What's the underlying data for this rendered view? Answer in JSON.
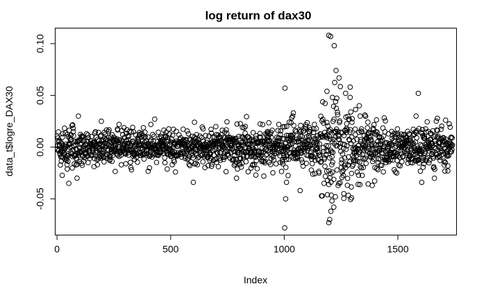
{
  "chart_data": {
    "type": "scatter",
    "title": "log return of dax30",
    "xlabel": "Index",
    "ylabel": "data_t$logre_DAX30",
    "xlim": [
      -8,
      1758
    ],
    "ylim": [
      -0.085,
      0.115
    ],
    "x_ticks": [
      0,
      500,
      1000,
      1500
    ],
    "x_tick_labels": [
      "0",
      "500",
      "1000",
      "1500"
    ],
    "y_ticks": [
      -0.05,
      0.0,
      0.05,
      0.1
    ],
    "y_tick_labels": [
      "-0.05",
      "0.00",
      "0.05",
      "0.10"
    ],
    "grid": false,
    "legend": "none",
    "n_points": 1740,
    "marker": "open-circle",
    "color": "#000000",
    "volatility_regimes": [
      {
        "from": 1,
        "to": 120,
        "sd": 0.011
      },
      {
        "from": 120,
        "to": 580,
        "sd": 0.008
      },
      {
        "from": 580,
        "to": 800,
        "sd": 0.009
      },
      {
        "from": 800,
        "to": 1000,
        "sd": 0.01
      },
      {
        "from": 1000,
        "to": 1160,
        "sd": 0.012
      },
      {
        "from": 1160,
        "to": 1300,
        "sd": 0.026
      },
      {
        "from": 1300,
        "to": 1450,
        "sd": 0.014
      },
      {
        "from": 1450,
        "to": 1740,
        "sd": 0.01
      }
    ],
    "notable_points": [
      {
        "x": 1003,
        "y": 0.057
      },
      {
        "x": 1002,
        "y": -0.078
      },
      {
        "x": 1006,
        "y": -0.05
      },
      {
        "x": 1010,
        "y": -0.034
      },
      {
        "x": 1040,
        "y": 0.033
      },
      {
        "x": 1070,
        "y": -0.042
      },
      {
        "x": 1188,
        "y": 0.054
      },
      {
        "x": 1196,
        "y": 0.108
      },
      {
        "x": 1204,
        "y": 0.107
      },
      {
        "x": 1212,
        "y": 0.048
      },
      {
        "x": 1220,
        "y": 0.098
      },
      {
        "x": 1228,
        "y": 0.074
      },
      {
        "x": 1196,
        "y": -0.073
      },
      {
        "x": 1200,
        "y": -0.07
      },
      {
        "x": 1205,
        "y": -0.062
      },
      {
        "x": 1210,
        "y": -0.052
      },
      {
        "x": 1190,
        "y": -0.046
      },
      {
        "x": 1218,
        "y": -0.058
      },
      {
        "x": 1225,
        "y": -0.048
      },
      {
        "x": 1240,
        "y": -0.035
      },
      {
        "x": 1262,
        "y": -0.045
      },
      {
        "x": 1270,
        "y": 0.052
      },
      {
        "x": 1290,
        "y": 0.058
      },
      {
        "x": 1296,
        "y": -0.049
      },
      {
        "x": 1330,
        "y": 0.04
      },
      {
        "x": 1355,
        "y": 0.031
      },
      {
        "x": 1590,
        "y": 0.052
      },
      {
        "x": 1605,
        "y": -0.034
      },
      {
        "x": 1580,
        "y": 0.03
      },
      {
        "x": 52,
        "y": -0.035
      },
      {
        "x": 88,
        "y": -0.03
      },
      {
        "x": 195,
        "y": 0.025
      },
      {
        "x": 430,
        "y": 0.027
      },
      {
        "x": 600,
        "y": -0.034
      },
      {
        "x": 605,
        "y": 0.024
      },
      {
        "x": 790,
        "y": -0.03
      },
      {
        "x": 875,
        "y": -0.027
      },
      {
        "x": 910,
        "y": -0.028
      },
      {
        "x": 1710,
        "y": 0.026
      },
      {
        "x": 1720,
        "y": -0.023
      }
    ]
  }
}
